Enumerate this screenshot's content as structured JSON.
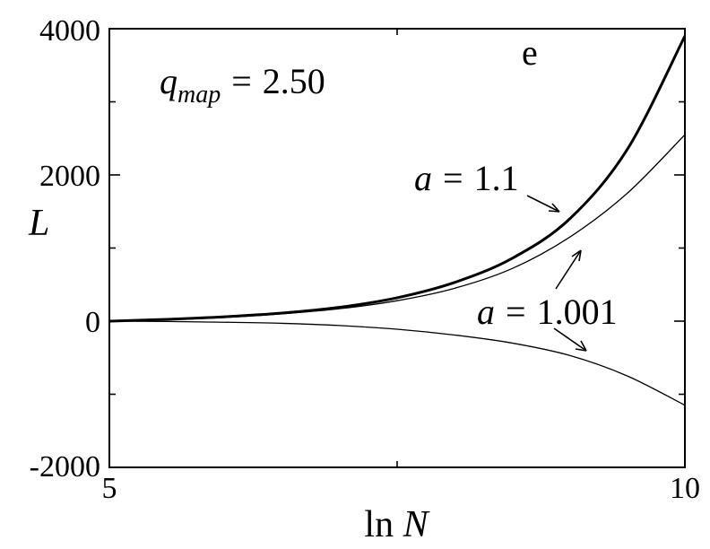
{
  "chart_data": {
    "type": "line",
    "title": "",
    "xlabel": {
      "prefix": "ln",
      "var": "N"
    },
    "ylabel": "L",
    "xlim": [
      5,
      10
    ],
    "ylim": [
      -2000,
      4000
    ],
    "x_ticks": [
      5,
      10
    ],
    "x_tick_labels": [
      "5",
      "10"
    ],
    "y_ticks": [
      -2000,
      0,
      2000,
      4000
    ],
    "y_tick_labels": [
      "-2000",
      "0",
      "2000",
      "4000"
    ],
    "grid": false,
    "annotations": {
      "panel_letter": "e",
      "qmap": {
        "var": "q",
        "sub": "map",
        "value": "2.50"
      },
      "a_label_1": {
        "var": "a",
        "value": "1.1"
      },
      "a_label_2": {
        "var": "a",
        "value": "1.001"
      }
    },
    "series": [
      {
        "x": [
          5.0,
          5.5,
          6.0,
          6.5,
          7.0,
          7.5,
          8.0,
          8.5,
          9.0,
          9.5,
          10.0
        ],
        "y": [
          0,
          25,
          60,
          110,
          190,
          320,
          530,
          860,
          1400,
          2350,
          3900
        ]
      },
      {
        "x": [
          5.0,
          5.5,
          6.0,
          6.5,
          7.0,
          7.5,
          8.0,
          8.5,
          9.0,
          9.5,
          10.0
        ],
        "y": [
          0,
          20,
          50,
          100,
          170,
          280,
          450,
          720,
          1150,
          1750,
          2550
        ]
      },
      {
        "x": [
          5.0,
          5.5,
          6.0,
          6.5,
          7.0,
          7.5,
          8.0,
          8.5,
          9.0,
          9.5,
          10.0
        ],
        "y": [
          0,
          -5,
          -15,
          -30,
          -60,
          -110,
          -190,
          -300,
          -470,
          -750,
          -1150
        ]
      }
    ]
  }
}
